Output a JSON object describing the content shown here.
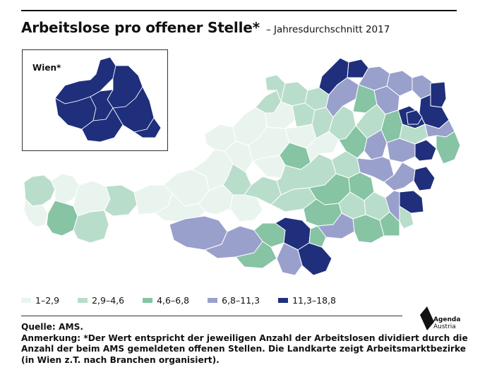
{
  "header": {
    "title": "Arbeitslose pro offener Stelle*",
    "subtitle": "– Jahresdurchschnitt 2017"
  },
  "inset": {
    "label": "Wien*"
  },
  "colors": {
    "c1": "#eaf4ef",
    "c2": "#b9ddcb",
    "c3": "#86c4a4",
    "c4": "#9aa0cc",
    "c5": "#1f2f7c",
    "border": "#ffffff"
  },
  "legend": [
    {
      "label": "1–2,9",
      "color": "#eaf4ef"
    },
    {
      "label": "2,9–4,6",
      "color": "#b9ddcb"
    },
    {
      "label": "4,6–6,8",
      "color": "#86c4a4"
    },
    {
      "label": "6,8–11,3",
      "color": "#9aa0cc"
    },
    {
      "label": "11,3–18,8",
      "color": "#1f2f7c"
    }
  ],
  "notes": {
    "source": "Quelle: AMS.",
    "remark_1": "Anmerkung: *Der Wert entspricht der jeweiligen Anzahl der Arbeitslosen dividiert durch die",
    "remark_2": "Anzahl der beim AMS gemeldeten offenen Stellen. Die Landkarte zeigt Arbeitsmarktbezirke",
    "remark_3": "(in Wien z.T. nach Branchen organisiert)."
  },
  "logo": {
    "line1": "Agenda",
    "line2": "Austria",
    "icon": "agenda-austria-logo-icon"
  }
}
